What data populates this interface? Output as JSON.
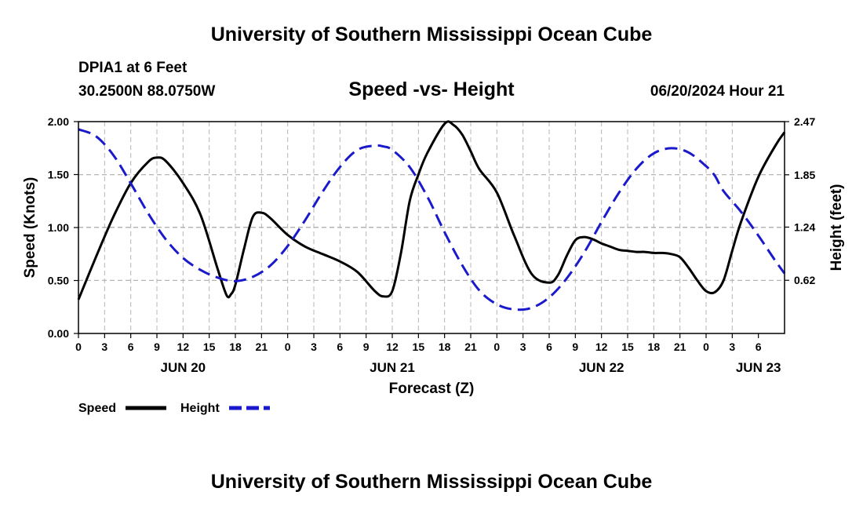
{
  "header": {
    "title": "University of Southern Mississippi Ocean Cube",
    "station": "DPIA1 at 6 Feet",
    "coords": "30.2500N  88.0750W",
    "datetime": "06/20/2024 Hour 21",
    "footer_title": "University of Southern Mississippi Ocean Cube"
  },
  "chart_data": {
    "type": "line",
    "title": "Speed -vs- Height",
    "xlabel": "Forecast (Z)",
    "ylabel": "Speed (Knots)",
    "y2label": "Height (feet)",
    "ylim": [
      0,
      2.0
    ],
    "y2lim": [
      0,
      2.47
    ],
    "grid": true,
    "x_hours_range": [
      0,
      81
    ],
    "x_tick_labels": [
      "0",
      "3",
      "6",
      "9",
      "12",
      "15",
      "18",
      "21",
      "0",
      "3",
      "6",
      "9",
      "12",
      "15",
      "18",
      "21",
      "0",
      "3",
      "6",
      "9",
      "12",
      "15",
      "18",
      "21",
      "0",
      "3",
      "6"
    ],
    "date_labels": [
      {
        "label": "JUN 20",
        "hour": 12
      },
      {
        "label": "JUN 21",
        "hour": 36
      },
      {
        "label": "JUN 22",
        "hour": 60
      },
      {
        "label": "JUN 23",
        "hour": 78
      }
    ],
    "y_ticks": [
      "0.00",
      "0.50",
      "1.00",
      "1.50",
      "2.00"
    ],
    "y2_ticks": [
      "0.62",
      "1.24",
      "1.85",
      "2.47"
    ],
    "legend": [
      {
        "name": "Speed",
        "color": "#000000",
        "style": "solid"
      },
      {
        "name": "Height",
        "color": "#1a1acc",
        "style": "dashed"
      }
    ],
    "series": [
      {
        "name": "Speed",
        "axis": "left",
        "color": "#000000",
        "x": [
          0,
          2,
          4,
          6,
          8,
          9,
          10,
          12,
          14,
          16,
          17,
          17.5,
          18,
          19,
          20,
          21,
          22,
          24,
          26,
          28,
          30,
          32,
          34,
          35,
          36,
          37,
          38,
          39,
          40,
          42,
          43,
          44,
          45,
          46,
          48,
          50,
          52,
          54,
          55,
          56,
          57,
          58,
          59,
          60,
          61,
          62,
          63,
          64,
          65,
          66,
          67,
          68,
          69,
          70,
          71,
          72,
          73,
          74,
          75,
          76,
          78,
          80,
          81
        ],
        "values": [
          0.32,
          0.72,
          1.1,
          1.42,
          1.62,
          1.66,
          1.63,
          1.42,
          1.12,
          0.6,
          0.36,
          0.37,
          0.46,
          0.8,
          1.1,
          1.14,
          1.09,
          0.93,
          0.82,
          0.75,
          0.68,
          0.58,
          0.4,
          0.35,
          0.4,
          0.76,
          1.25,
          1.5,
          1.7,
          1.98,
          1.97,
          1.88,
          1.72,
          1.55,
          1.33,
          0.92,
          0.56,
          0.48,
          0.55,
          0.73,
          0.88,
          0.91,
          0.89,
          0.85,
          0.82,
          0.79,
          0.78,
          0.77,
          0.77,
          0.76,
          0.76,
          0.75,
          0.72,
          0.62,
          0.5,
          0.4,
          0.39,
          0.5,
          0.78,
          1.05,
          1.48,
          1.78,
          1.9
        ]
      },
      {
        "name": "Height",
        "axis": "right",
        "color": "#1a1acc",
        "x": [
          0,
          2,
          4,
          6,
          8,
          10,
          12,
          14,
          16,
          18,
          20,
          22,
          24,
          26,
          28,
          30,
          32,
          34,
          35,
          36,
          38,
          40,
          42,
          44,
          46,
          48,
          50,
          52,
          54,
          56,
          58,
          60,
          62,
          64,
          66,
          68,
          70,
          72,
          73,
          74,
          76,
          78,
          80,
          81
        ],
        "values": [
          2.38,
          2.3,
          2.08,
          1.75,
          1.4,
          1.1,
          0.88,
          0.74,
          0.65,
          0.61,
          0.66,
          0.79,
          1.02,
          1.32,
          1.65,
          1.94,
          2.14,
          2.19,
          2.18,
          2.14,
          1.94,
          1.6,
          1.18,
          0.8,
          0.5,
          0.34,
          0.28,
          0.3,
          0.42,
          0.64,
          0.94,
          1.3,
          1.64,
          1.92,
          2.1,
          2.16,
          2.11,
          1.95,
          1.84,
          1.66,
          1.42,
          1.14,
          0.84,
          0.7
        ]
      }
    ]
  }
}
